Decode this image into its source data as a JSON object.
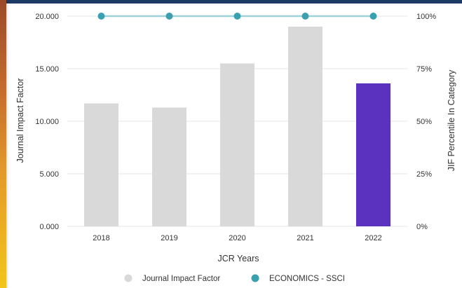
{
  "chart_data": {
    "type": "bar",
    "categories": [
      "2018",
      "2019",
      "2020",
      "2021",
      "2022"
    ],
    "series": [
      {
        "name": "Journal Impact Factor",
        "kind": "bar",
        "axis": "left",
        "values": [
          11.7,
          11.3,
          15.5,
          19.0,
          13.6
        ]
      },
      {
        "name": "ECONOMICS - SSCI",
        "kind": "line",
        "axis": "right",
        "values": [
          100,
          100,
          100,
          100,
          100
        ]
      }
    ],
    "xlabel": "JCR Years",
    "ylabel": "Journal Impact Factor",
    "y2label": "JIF Percentile In Category",
    "ylim": [
      0,
      20
    ],
    "y2lim": [
      0,
      100
    ],
    "yticks": [
      "0.000",
      "5.000",
      "10.000",
      "15.000",
      "20.000"
    ],
    "y2ticks": [
      "0%",
      "25%",
      "50%",
      "75%",
      "100%"
    ],
    "grid": true,
    "legend_position": "bottom",
    "colors": {
      "bar": "#d9d9d9",
      "highlight_bar": "#5b32c0",
      "line": "#9ed1d8",
      "marker": "#3a9fae",
      "grid": "#e6e6e6",
      "legend_bar_swatch": "#d9d9d9"
    },
    "highlight_category": "2022"
  }
}
